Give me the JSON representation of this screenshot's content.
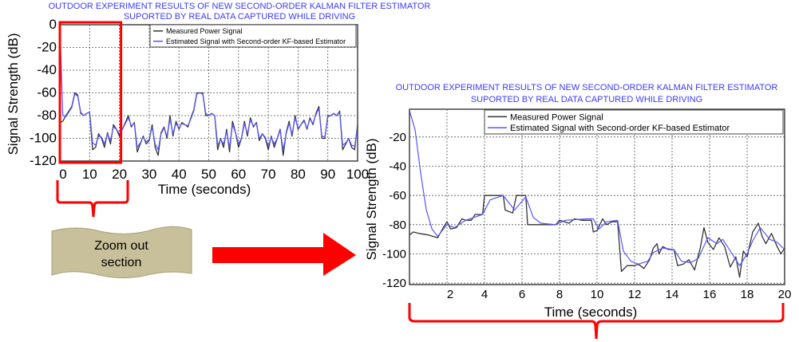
{
  "chart_data": [
    {
      "type": "line",
      "title": [
        "OUTDOOR EXPERIMENT RESULTS OF NEW SECOND-ORDER KALMAN FILTER ESTIMATOR",
        "SUPORTED BY REAL DATA CAPTURED WHILE DRIVING"
      ],
      "xlabel": "Time (seconds)",
      "ylabel": "Signal Strength (dB)",
      "xlim": [
        0,
        100
      ],
      "ylim": [
        -120,
        0
      ],
      "xticks": [
        "0",
        "10",
        "20",
        "30",
        "40",
        "50",
        "60",
        "70",
        "80",
        "90",
        "100"
      ],
      "yticks": [
        "0",
        "-20",
        "-40",
        "-60",
        "-80",
        "-100",
        "-120"
      ],
      "grid": true,
      "legend_position": "top-right",
      "highlight_range": [
        0,
        20
      ],
      "series": [
        {
          "name": "Measured Power Signal",
          "color": "#333333",
          "x": [
            0,
            1,
            2,
            3,
            4,
            5,
            6,
            7,
            8,
            9,
            10,
            11,
            12,
            13,
            14,
            15,
            16,
            17,
            18,
            19,
            20,
            21,
            22,
            23,
            24,
            25,
            26,
            27,
            28,
            29,
            30,
            31,
            32,
            33,
            34,
            35,
            36,
            37,
            38,
            39,
            40,
            41,
            42,
            43,
            44,
            45,
            46,
            47,
            48,
            49,
            50,
            51,
            52,
            53,
            54,
            55,
            56,
            57,
            58,
            59,
            60,
            61,
            62,
            63,
            64,
            65,
            66,
            67,
            68,
            69,
            70,
            71,
            72,
            73,
            74,
            75,
            76,
            77,
            78,
            79,
            80,
            81,
            82,
            83,
            84,
            85,
            86,
            87,
            88,
            89,
            90,
            91,
            92,
            93,
            94,
            95,
            96,
            97,
            98,
            99,
            100
          ],
          "values": [
            -86,
            -85,
            -80,
            -76,
            -72,
            -60,
            -62,
            -78,
            -80,
            -78,
            -77,
            -110,
            -108,
            -96,
            -100,
            -108,
            -95,
            -105,
            -88,
            -92,
            -98,
            -92,
            -86,
            -80,
            -90,
            -86,
            -112,
            -105,
            -98,
            -105,
            -102,
            -88,
            -108,
            -115,
            -95,
            -90,
            -100,
            -80,
            -98,
            -85,
            -92,
            -86,
            -88,
            -90,
            -82,
            -75,
            -60,
            -60,
            -60,
            -80,
            -80,
            -78,
            -80,
            -110,
            -100,
            -108,
            -92,
            -112,
            -85,
            -95,
            -108,
            -100,
            -85,
            -98,
            -82,
            -90,
            -86,
            -102,
            -96,
            -100,
            -110,
            -98,
            -108,
            -100,
            -92,
            -115,
            -95,
            -85,
            -98,
            -80,
            -92,
            -88,
            -84,
            -92,
            -82,
            -88,
            -78,
            -72,
            -100,
            -100,
            -80,
            -80,
            -78,
            -80,
            -76,
            -110,
            -105,
            -100,
            -108,
            -110,
            -88
          ]
        },
        {
          "name": "Estimated Signal with Second-order KF-based Estimator",
          "color": "#5555ff",
          "x": [
            0,
            1,
            2,
            3,
            4,
            5,
            6,
            7,
            8,
            9,
            10,
            11,
            12,
            13,
            14,
            15,
            16,
            17,
            18,
            19,
            20,
            21,
            22,
            23,
            24,
            25,
            26,
            27,
            28,
            29,
            30,
            31,
            32,
            33,
            34,
            35,
            36,
            37,
            38,
            39,
            40,
            41,
            42,
            43,
            44,
            45,
            46,
            47,
            48,
            49,
            50,
            51,
            52,
            53,
            54,
            55,
            56,
            57,
            58,
            59,
            60,
            61,
            62,
            63,
            64,
            65,
            66,
            67,
            68,
            69,
            70,
            71,
            72,
            73,
            74,
            75,
            76,
            77,
            78,
            79,
            80,
            81,
            82,
            83,
            84,
            85,
            86,
            87,
            88,
            89,
            90,
            91,
            92,
            93,
            94,
            95,
            96,
            97,
            98,
            99,
            100
          ],
          "values": [
            0,
            -80,
            -81,
            -77,
            -73,
            -61,
            -63,
            -77,
            -80,
            -78,
            -77,
            -104,
            -106,
            -98,
            -99,
            -105,
            -96,
            -102,
            -90,
            -92,
            -96,
            -92,
            -87,
            -82,
            -89,
            -87,
            -108,
            -104,
            -99,
            -103,
            -101,
            -90,
            -105,
            -110,
            -96,
            -91,
            -98,
            -83,
            -96,
            -87,
            -91,
            -87,
            -88,
            -89,
            -83,
            -76,
            -61,
            -60,
            -61,
            -78,
            -80,
            -78,
            -80,
            -106,
            -101,
            -105,
            -94,
            -108,
            -88,
            -95,
            -105,
            -100,
            -87,
            -96,
            -84,
            -89,
            -87,
            -100,
            -96,
            -99,
            -107,
            -99,
            -105,
            -100,
            -93,
            -110,
            -96,
            -87,
            -96,
            -82,
            -91,
            -88,
            -85,
            -91,
            -83,
            -87,
            -79,
            -74,
            -98,
            -99,
            -81,
            -80,
            -78,
            -80,
            -77,
            -106,
            -104,
            -100,
            -106,
            -107,
            -90
          ]
        }
      ]
    },
    {
      "type": "line",
      "title": [
        "OUTDOOR EXPERIMENT RESULTS OF NEW SECOND-ORDER KALMAN FILTER ESTIMATOR",
        "SUPORTED BY REAL DATA CAPTURED WHILE DRIVING"
      ],
      "xlabel": "Time (seconds)",
      "ylabel": "Signal Strength (dB)",
      "xlim": [
        0,
        20
      ],
      "ylim": [
        -121,
        -1
      ],
      "xticks": [
        "2",
        "4",
        "6",
        "8",
        "10",
        "12",
        "14",
        "16",
        "18",
        "20"
      ],
      "yticks": [
        "-20",
        "-40",
        "-60",
        "-80",
        "-100",
        "-120"
      ],
      "grid": true,
      "legend_position": "top-right",
      "series": [
        {
          "name": "Measured Power Signal",
          "color": "#333333",
          "x": [
            0,
            0.2,
            0.5,
            1,
            1.5,
            1.8,
            2,
            2.2,
            2.5,
            2.8,
            3,
            3.3,
            3.5,
            3.9,
            4,
            5,
            5.1,
            5.5,
            5.7,
            6.2,
            6.3,
            7,
            7.8,
            8,
            8.5,
            8.8,
            9.2,
            9.7,
            9.8,
            10,
            10.3,
            10.5,
            10.8,
            11.1,
            11.3,
            11.6,
            12,
            12.2,
            12.5,
            12.8,
            13,
            13.2,
            13.3,
            13.5,
            13.8,
            14.1,
            14.3,
            14.6,
            14.9,
            15.2,
            15.5,
            15.7,
            15.9,
            16.2,
            16.5,
            16.8,
            17.1,
            17.4,
            17.6,
            17.8,
            18,
            18.3,
            18.6,
            18.8,
            19,
            19.3,
            19.6,
            19.8,
            20
          ],
          "values": [
            -87,
            -85,
            -86,
            -87,
            -89,
            -82,
            -78,
            -83,
            -82,
            -76,
            -77,
            -77,
            -73,
            -73,
            -60,
            -60,
            -70,
            -72,
            -60,
            -60,
            -80,
            -80,
            -80,
            -77,
            -79,
            -76,
            -77,
            -77,
            -85,
            -84,
            -76,
            -80,
            -78,
            -78,
            -112,
            -108,
            -108,
            -107,
            -110,
            -104,
            -96,
            -93,
            -100,
            -95,
            -97,
            -97,
            -108,
            -107,
            -104,
            -111,
            -96,
            -82,
            -92,
            -97,
            -89,
            -95,
            -109,
            -102,
            -116,
            -98,
            -102,
            -85,
            -79,
            -88,
            -93,
            -86,
            -95,
            -100,
            -96
          ]
        },
        {
          "name": "Estimated Signal with Second-order KF-based Estimator",
          "color": "#5555ff",
          "x": [
            0,
            0.3,
            0.6,
            0.9,
            1.2,
            1.5,
            2,
            2.4,
            3,
            3.9,
            4.3,
            5,
            5.6,
            6.2,
            6.6,
            7,
            7.8,
            8.3,
            9.5,
            9.8,
            10.1,
            10.5,
            11.1,
            11.4,
            11.8,
            12.2,
            12.7,
            13,
            13.5,
            14.1,
            14.5,
            15,
            15.4,
            15.9,
            16.4,
            16.7,
            17.1,
            17.6,
            18,
            18.3,
            18.7,
            19.2,
            19.6,
            20
          ],
          "values": [
            -2,
            -15,
            -45,
            -70,
            -83,
            -88,
            -80,
            -82,
            -77,
            -73,
            -63,
            -60,
            -70,
            -61,
            -75,
            -79,
            -80,
            -77,
            -76,
            -76,
            -83,
            -78,
            -77,
            -98,
            -105,
            -107,
            -105,
            -99,
            -96,
            -97,
            -105,
            -106,
            -103,
            -89,
            -93,
            -90,
            -98,
            -108,
            -100,
            -91,
            -82,
            -90,
            -92,
            -97
          ]
        }
      ]
    }
  ],
  "callout": {
    "label_line1": "Zoom out",
    "label_line2": "section"
  },
  "colors": {
    "accent": "#ff0000",
    "banner": "#c8c09a",
    "title": "#3b3bff"
  }
}
